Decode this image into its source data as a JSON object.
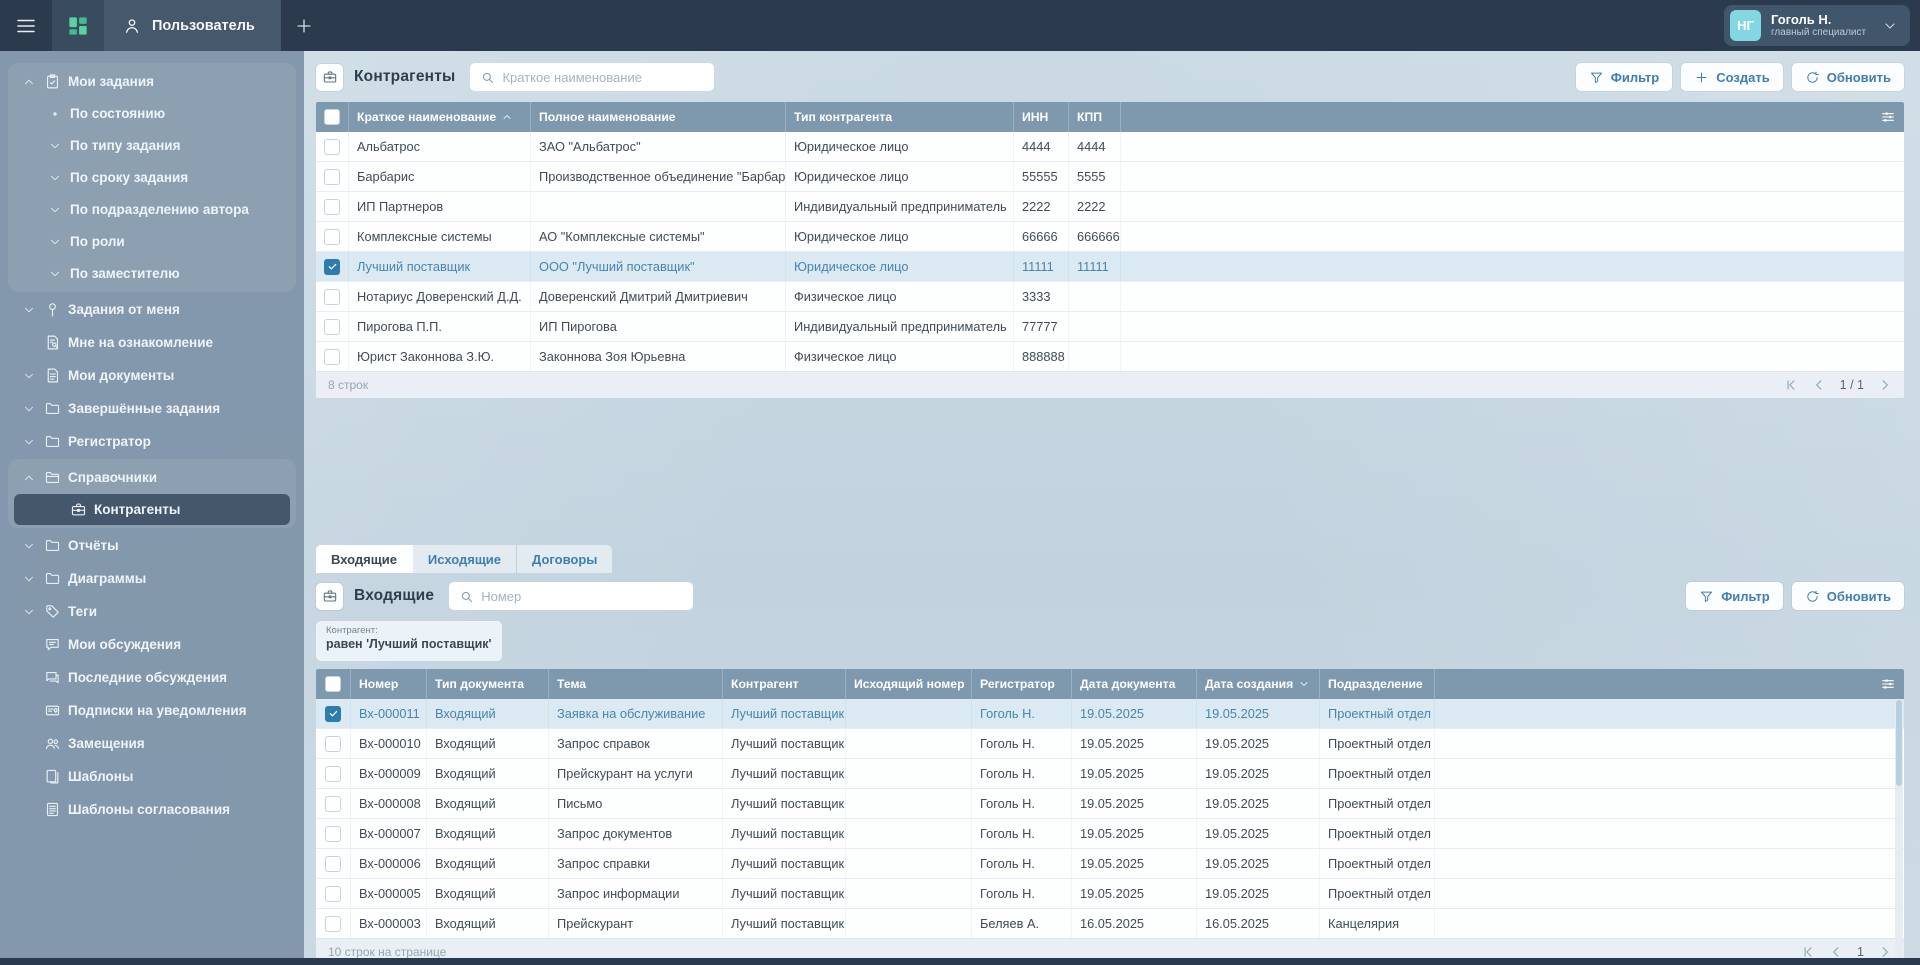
{
  "colors": {
    "topbar": "#2b3b4d",
    "accent_blue": "#3f7eb3",
    "table_header": "#7e99ae",
    "selected_row_bg": "#dbe9f3",
    "selected_row_text": "#4785ad",
    "sidebar": "#8096aa",
    "avatar_bg": "#82d7e3",
    "grid_icon_green": "#57cf9f",
    "checkbox_checked": "#2e7cab"
  },
  "topbar": {
    "tab_user": "Пользователь",
    "user": {
      "initials": "НГ",
      "name": "Гоголь Н.",
      "role": "главный специалист"
    },
    "icons": [
      "menu-icon",
      "apps-grid-icon",
      "user-icon",
      "add-tab-icon",
      "chevron-down-icon"
    ]
  },
  "sidebar": {
    "groups": [
      {
        "boxed": true,
        "items": [
          {
            "lead": "chevron-up-icon",
            "icon": "clipboard-icon",
            "label": "Мои задания"
          },
          {
            "lead": "dot-icon",
            "label": "По состоянию",
            "child": true
          },
          {
            "lead": "chevron-down-icon",
            "label": "По типу задания",
            "child": true
          },
          {
            "lead": "chevron-down-icon",
            "label": "По сроку задания",
            "child": true
          },
          {
            "lead": "chevron-down-icon",
            "label": "По подразделению автора",
            "child": true
          },
          {
            "lead": "chevron-down-icon",
            "label": "По роли",
            "child": true
          },
          {
            "lead": "chevron-down-icon",
            "label": "По заместителю",
            "child": true
          }
        ]
      },
      {
        "boxed": false,
        "items": [
          {
            "lead": "chevron-down-icon",
            "icon": "pin-icon",
            "label": "Задания от меня"
          }
        ]
      },
      {
        "boxed": false,
        "items": [
          {
            "icon": "doc-review-icon",
            "label": "Мне на ознакомление"
          }
        ]
      },
      {
        "boxed": false,
        "items": [
          {
            "lead": "chevron-down-icon",
            "icon": "doc-icon",
            "label": "Мои документы"
          }
        ]
      },
      {
        "boxed": false,
        "items": [
          {
            "lead": "chevron-down-icon",
            "icon": "folder-icon",
            "label": "Завершённые задания"
          }
        ]
      },
      {
        "boxed": false,
        "items": [
          {
            "lead": "chevron-down-icon",
            "icon": "folder-icon",
            "label": "Регистратор"
          }
        ]
      },
      {
        "boxed": true,
        "items": [
          {
            "lead": "chevron-up-icon",
            "icon": "folder-open-icon",
            "label": "Справочники"
          },
          {
            "icon": "briefcase-icon",
            "label": "Контрагенты",
            "deep": true,
            "selected": true
          }
        ]
      },
      {
        "boxed": false,
        "items": [
          {
            "lead": "chevron-down-icon",
            "icon": "folder-icon",
            "label": "Отчёты"
          }
        ]
      },
      {
        "boxed": false,
        "items": [
          {
            "lead": "chevron-down-icon",
            "icon": "folder-icon",
            "label": "Диаграммы"
          }
        ]
      },
      {
        "boxed": false,
        "items": [
          {
            "lead": "chevron-down-icon",
            "icon": "tag-icon",
            "label": "Теги"
          }
        ]
      },
      {
        "boxed": false,
        "items": [
          {
            "icon": "comment-icon",
            "label": "Мои обсуждения"
          }
        ]
      },
      {
        "boxed": false,
        "items": [
          {
            "icon": "comments-icon",
            "label": "Последние обсуждения"
          }
        ]
      },
      {
        "boxed": false,
        "items": [
          {
            "icon": "subscriptions-icon",
            "label": "Подписки на уведомления"
          }
        ]
      },
      {
        "boxed": false,
        "items": [
          {
            "icon": "people-icon",
            "label": "Замещения"
          }
        ]
      },
      {
        "boxed": false,
        "items": [
          {
            "icon": "templates-icon",
            "label": "Шаблоны"
          }
        ]
      },
      {
        "boxed": false,
        "items": [
          {
            "icon": "approval-templates-icon",
            "label": "Шаблоны согласования"
          }
        ]
      }
    ]
  },
  "counterparties": {
    "title": "Контрагенты",
    "title_icon": "briefcase-icon",
    "search_placeholder": "Краткое наименование",
    "buttons": {
      "filter": "Фильтр",
      "create": "Создать",
      "refresh": "Обновить"
    },
    "columns": [
      "Краткое наименование",
      "Полное наименование",
      "Тип контрагента",
      "ИНН",
      "КПП"
    ],
    "sort": {
      "column": 0,
      "dir": "asc"
    },
    "rows": [
      {
        "short": "Альбатрос",
        "full": "ЗАО \"Альбатрос\"",
        "type": "Юридическое лицо",
        "inn": "4444",
        "kpp": "4444",
        "selected": false
      },
      {
        "short": "Барбарис",
        "full": "Производственное объединение \"Барбарис\"",
        "type": "Юридическое лицо",
        "inn": "55555",
        "kpp": "5555",
        "selected": false
      },
      {
        "short": "ИП Партнеров",
        "full": "",
        "type": "Индивидуальный предприниматель",
        "inn": "2222",
        "kpp": "2222",
        "selected": false
      },
      {
        "short": "Комплексные системы",
        "full": "АО \"Комплексные системы\"",
        "type": "Юридическое лицо",
        "inn": "66666",
        "kpp": "666666",
        "selected": false
      },
      {
        "short": "Лучший поставщик",
        "full": "ООО \"Лучший поставщик\"",
        "type": "Юридическое лицо",
        "inn": "11111",
        "kpp": "11111",
        "selected": true
      },
      {
        "short": "Нотариус Доверенский Д.Д.",
        "full": "Доверенский Дмитрий Дмитриевич",
        "type": "Физическое лицо",
        "inn": "3333",
        "kpp": "",
        "selected": false
      },
      {
        "short": "Пирогова П.П.",
        "full": "ИП Пирогова",
        "type": "Индивидуальный предприниматель",
        "inn": "77777",
        "kpp": "",
        "selected": false
      },
      {
        "short": "Юрист Законнова З.Ю.",
        "full": "Законнова Зоя Юрьевна",
        "type": "Физическое лицо",
        "inn": "888888",
        "kpp": "",
        "selected": false
      }
    ],
    "footer": {
      "rows_count": "8 строк",
      "page": "1 / 1"
    }
  },
  "documents": {
    "tabs": [
      {
        "label": "Входящие",
        "active": true
      },
      {
        "label": "Исходящие",
        "active": false
      },
      {
        "label": "Договоры",
        "active": false
      }
    ],
    "title": "Входящие",
    "title_icon": "briefcase-icon",
    "search_placeholder": "Номер",
    "buttons": {
      "filter": "Фильтр",
      "refresh": "Обновить"
    },
    "filter_chip": {
      "label": "Контрагент:",
      "value": "равен 'Лучший поставщик'"
    },
    "columns": [
      "Номер",
      "Тип документа",
      "Тема",
      "Контрагент",
      "Исходящий номер",
      "Регистратор",
      "Дата документа",
      "Дата создания",
      "Подразделение"
    ],
    "sort": {
      "column": 7,
      "dir": "desc"
    },
    "rows": [
      {
        "number": "Вх-000011",
        "doc_type": "Входящий",
        "subject": "Заявка на обслуживание",
        "counterparty": "Лучший поставщик",
        "outgoing_number": "",
        "registrar": "Гоголь Н.",
        "doc_date": "19.05.2025",
        "created": "19.05.2025",
        "department": "Проектный отдел",
        "selected": true
      },
      {
        "number": "Вх-000010",
        "doc_type": "Входящий",
        "subject": "Запрос справок",
        "counterparty": "Лучший поставщик",
        "outgoing_number": "",
        "registrar": "Гоголь Н.",
        "doc_date": "19.05.2025",
        "created": "19.05.2025",
        "department": "Проектный отдел",
        "selected": false
      },
      {
        "number": "Вх-000009",
        "doc_type": "Входящий",
        "subject": "Прейскурант на услуги",
        "counterparty": "Лучший поставщик",
        "outgoing_number": "",
        "registrar": "Гоголь Н.",
        "doc_date": "19.05.2025",
        "created": "19.05.2025",
        "department": "Проектный отдел",
        "selected": false
      },
      {
        "number": "Вх-000008",
        "doc_type": "Входящий",
        "subject": "Письмо",
        "counterparty": "Лучший поставщик",
        "outgoing_number": "",
        "registrar": "Гоголь Н.",
        "doc_date": "19.05.2025",
        "created": "19.05.2025",
        "department": "Проектный отдел",
        "selected": false
      },
      {
        "number": "Вх-000007",
        "doc_type": "Входящий",
        "subject": "Запрос документов",
        "counterparty": "Лучший поставщик",
        "outgoing_number": "",
        "registrar": "Гоголь Н.",
        "doc_date": "19.05.2025",
        "created": "19.05.2025",
        "department": "Проектный отдел",
        "selected": false
      },
      {
        "number": "Вх-000006",
        "doc_type": "Входящий",
        "subject": "Запрос справки",
        "counterparty": "Лучший поставщик",
        "outgoing_number": "",
        "registrar": "Гоголь Н.",
        "doc_date": "19.05.2025",
        "created": "19.05.2025",
        "department": "Проектный отдел",
        "selected": false
      },
      {
        "number": "Вх-000005",
        "doc_type": "Входящий",
        "subject": "Запрос информации",
        "counterparty": "Лучший поставщик",
        "outgoing_number": "",
        "registrar": "Гоголь Н.",
        "doc_date": "19.05.2025",
        "created": "19.05.2025",
        "department": "Проектный отдел",
        "selected": false
      },
      {
        "number": "Вх-000003",
        "doc_type": "Входящий",
        "subject": "Прейскурант",
        "counterparty": "Лучший поставщик",
        "outgoing_number": "",
        "registrar": "Беляев А.",
        "doc_date": "16.05.2025",
        "created": "16.05.2025",
        "department": "Канцелярия",
        "selected": false
      }
    ],
    "footer": {
      "rows_count": "10 строк на странице",
      "page": "1"
    }
  }
}
